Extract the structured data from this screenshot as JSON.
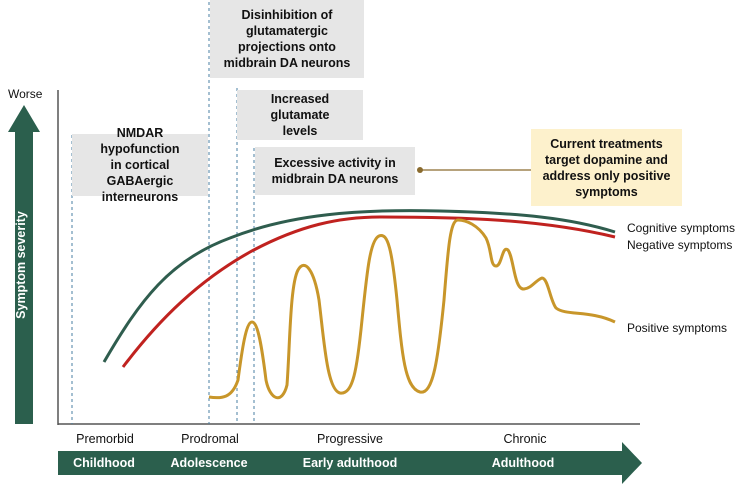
{
  "y_axis": {
    "top_label": "Worse",
    "label": "Symptom severity"
  },
  "boxes": {
    "nmdar": "NMDAR hypofunction\nin cortical GABAergic\ninterneurons",
    "disinhibition": "Disinhibition of\nglutamatergic\nprojections onto\nmidbrain DA neurons",
    "glutamate": "Increased glutamate\nlevels",
    "da_activity": "Excessive activity in\nmidbrain DA neurons",
    "treatments": "Current treatments\ntarget dopamine and\naddress only positive\nsymptoms"
  },
  "curves": {
    "cognitive": {
      "label": "Cognitive symptoms",
      "color": "#2f5d4e"
    },
    "negative": {
      "label": "Negative symptoms",
      "color": "#c0221f"
    },
    "positive": {
      "label": "Positive symptoms",
      "color": "#c8962a"
    }
  },
  "stages": [
    "Premorbid",
    "Prodromal",
    "Progressive",
    "Chronic"
  ],
  "life_stages": [
    "Childhood",
    "Adolescence",
    "Early adulthood",
    "Adulthood"
  ],
  "colors": {
    "arrow": "#2b5f4d",
    "box": "#e6e6e6",
    "box_highlight": "#fdf1cc",
    "dashed": "#4a7fa3"
  }
}
